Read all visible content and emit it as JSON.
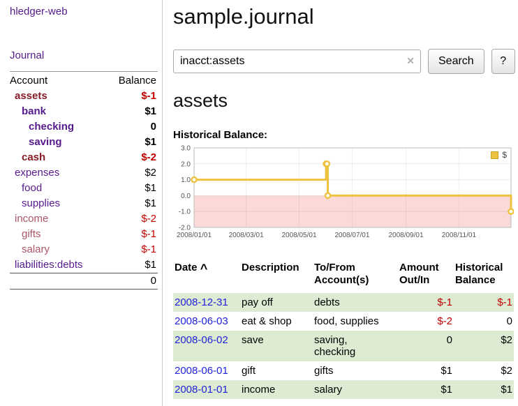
{
  "sidebar": {
    "app_title": "hledger-web",
    "journal_link": "Journal",
    "accounts_table": {
      "header": {
        "account": "Account",
        "balance": "Balance"
      },
      "rows": [
        {
          "name": "assets",
          "balance": "$-1"
        },
        {
          "name": "bank",
          "balance": "$1"
        },
        {
          "name": "checking",
          "balance": "0"
        },
        {
          "name": "saving",
          "balance": "$1"
        },
        {
          "name": "cash",
          "balance": "$-2"
        },
        {
          "name": "expenses",
          "balance": "$2"
        },
        {
          "name": "food",
          "balance": "$1"
        },
        {
          "name": "supplies",
          "balance": "$1"
        },
        {
          "name": "income",
          "balance": "$-2"
        },
        {
          "name": "gifts",
          "balance": "$-1"
        },
        {
          "name": "salary",
          "balance": "$-1"
        },
        {
          "name": "liabilities:debts",
          "balance": "$1"
        }
      ],
      "total": "0"
    }
  },
  "header": {
    "title": "sample.journal"
  },
  "search": {
    "value": "inacct:assets",
    "clear_icon": "✕",
    "search_button": "Search",
    "help_button": "?"
  },
  "account_page": {
    "title": "assets",
    "chart_title": "Historical Balance:"
  },
  "chart_data": {
    "type": "line",
    "step": true,
    "title": "Historical Balance",
    "legend": "top-right",
    "x_range": [
      "2008-01-01",
      "2008-12-31"
    ],
    "y_range": [
      -2,
      3
    ],
    "x_ticks": [
      "2008/01/01",
      "2008/03/01",
      "2008/05/01",
      "2008/07/01",
      "2008/09/01",
      "2008/11/01"
    ],
    "y_ticks": [
      3.0,
      2.0,
      1.0,
      0.0,
      -1.0,
      -2.0
    ],
    "negative_region_color": "#fbd9d9",
    "series": [
      {
        "name": "$",
        "color": "#EDC240",
        "points": [
          {
            "date": "2008-01-01",
            "value": 1
          },
          {
            "date": "2008-06-01",
            "value": 2
          },
          {
            "date": "2008-06-02",
            "value": 2
          },
          {
            "date": "2008-06-03",
            "value": 0
          },
          {
            "date": "2008-12-31",
            "value": -1
          }
        ]
      }
    ]
  },
  "register": {
    "headers": {
      "date": "Date",
      "sort_indicator": "^",
      "description": "Description",
      "account": "To/From Account(s)",
      "amount": "Amount Out/In",
      "balance": "Historical Balance"
    },
    "rows": [
      {
        "date": "2008-12-31",
        "description": "pay off",
        "accounts": "debts",
        "amount": "$-1",
        "balance": "$-1"
      },
      {
        "date": "2008-06-03",
        "description": "eat & shop",
        "accounts": "food, supplies",
        "amount": "$-2",
        "balance": "0"
      },
      {
        "date": "2008-06-02",
        "description": "save",
        "accounts": "saving, checking",
        "amount": "0",
        "balance": "$2"
      },
      {
        "date": "2008-06-01",
        "description": "gift",
        "accounts": "gifts",
        "amount": "$1",
        "balance": "$2"
      },
      {
        "date": "2008-01-01",
        "description": "income",
        "accounts": "salary",
        "amount": "$1",
        "balance": "$1"
      }
    ]
  }
}
